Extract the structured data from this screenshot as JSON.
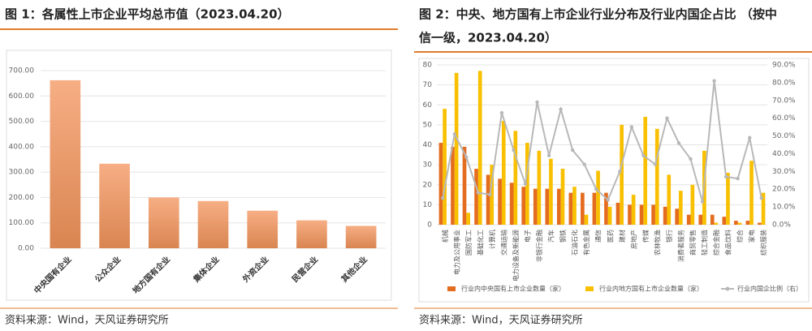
{
  "chart_data": [
    {
      "type": "bar",
      "title": "图 1：各属性上市企业平均总市值（2023.04.20）",
      "categories": [
        "中央国有企业",
        "公众企业",
        "地方国有企业",
        "集体企业",
        "外资企业",
        "民营企业",
        "其他企业"
      ],
      "values": [
        662,
        333,
        200,
        186,
        148,
        110,
        88
      ],
      "ylim": [
        0,
        700
      ],
      "yticks": [
        {
          "value": 0,
          "label": "0.00"
        },
        {
          "value": 100,
          "label": "100.00"
        },
        {
          "value": 200,
          "label": "200.00"
        },
        {
          "value": 300,
          "label": "300.00"
        },
        {
          "value": 400,
          "label": "400.00"
        },
        {
          "value": 500,
          "label": "500.00"
        },
        {
          "value": 600,
          "label": "600.00"
        },
        {
          "value": 700,
          "label": "700.00"
        }
      ],
      "color": "#e8895a",
      "grid": true,
      "source": "资料来源：Wind，天风证券研究所"
    },
    {
      "type": "bar-line",
      "title_lines": [
        "图 2：中央、地方国有上市企业行业分布及行业内国企占比 （按中",
        "信一级，2023.04.20）"
      ],
      "categories": [
        "机械",
        "电力及公用事业",
        "国防军工",
        "基础化工",
        "计算机",
        "交通运输",
        "电力设备及新能源",
        "电子",
        "非银行金融",
        "汽车",
        "钢铁",
        "石油石化",
        "有色金属",
        "通信",
        "医药",
        "建材",
        "房地产",
        "传媒",
        "农林牧渔",
        "银行",
        "消费者服务",
        "商贸零售",
        "轻工制造",
        "综合金融",
        "食品饮料",
        "综合",
        "家电",
        "纺织服装"
      ],
      "series": [
        {
          "name": "行业内中央国有上市企业数量（家）",
          "color": "#e46c1f",
          "values": [
            41,
            39,
            39,
            28,
            25,
            23,
            21,
            19,
            18,
            18,
            18,
            16,
            16,
            16,
            16,
            11,
            10,
            10,
            10,
            9,
            8,
            5,
            5,
            5,
            4,
            2,
            2,
            1
          ]
        },
        {
          "name": "行业内地方国有上市企业数量（家）",
          "color": "#f8c000",
          "values": [
            58,
            76,
            6,
            77,
            30,
            52,
            47,
            41,
            37,
            33,
            28,
            19,
            5,
            27,
            9,
            50,
            15,
            54,
            48,
            25,
            17,
            20,
            37,
            1,
            26,
            1,
            32,
            16
          ]
        },
        {
          "name": "行业内国企比例（右）",
          "color": "#b8b8b8",
          "axis": "y2",
          "values": [
            15,
            51,
            38,
            18,
            17,
            63,
            42,
            23,
            69,
            39,
            65,
            42,
            34,
            20,
            14,
            30,
            55,
            39,
            34,
            60,
            46,
            37,
            13,
            81,
            27,
            26,
            49,
            15
          ]
        }
      ],
      "ylim": [
        0,
        80
      ],
      "yticks": [
        0,
        10,
        20,
        30,
        40,
        50,
        60,
        70,
        80
      ],
      "y2lim": [
        0,
        90
      ],
      "y2ticks": [
        {
          "value": 0,
          "label": "0.0%"
        },
        {
          "value": 10,
          "label": "10.0%"
        },
        {
          "value": 20,
          "label": "20.0%"
        },
        {
          "value": 30,
          "label": "30.0%"
        },
        {
          "value": 40,
          "label": "40.0%"
        },
        {
          "value": 50,
          "label": "50.0%"
        },
        {
          "value": 60,
          "label": "60.0%"
        },
        {
          "value": 70,
          "label": "70.0%"
        },
        {
          "value": 80,
          "label": "80.0%"
        },
        {
          "value": 90,
          "label": "90.0%"
        }
      ],
      "grid": true,
      "source": "资料来源：Wind，天风证券研究所"
    }
  ]
}
